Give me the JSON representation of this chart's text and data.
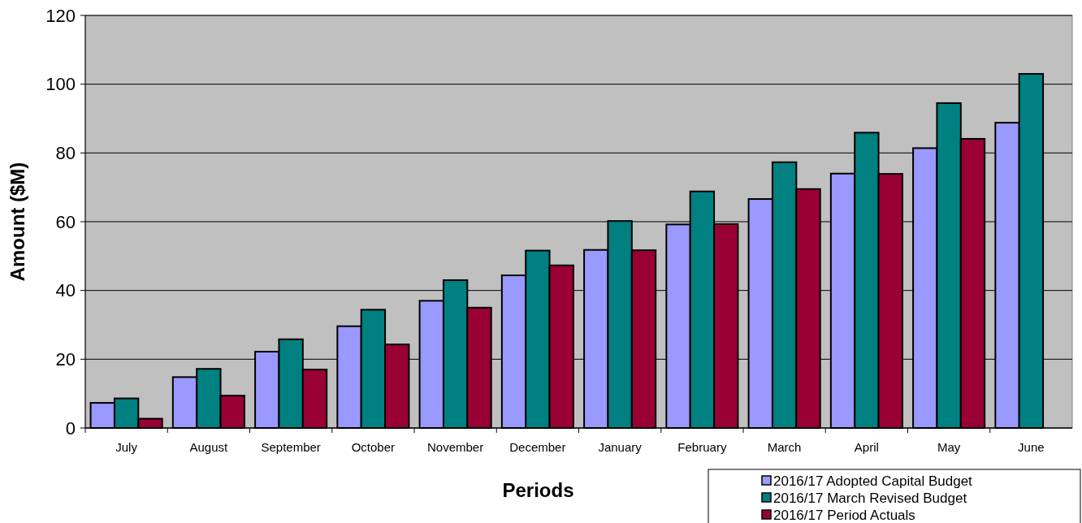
{
  "chart_data": {
    "type": "bar",
    "xlabel": "Periods",
    "ylabel": "Amount ($M)",
    "categories": [
      "July",
      "August",
      "September",
      "October",
      "November",
      "December",
      "January",
      "February",
      "March",
      "April",
      "May",
      "June"
    ],
    "series": [
      {
        "name": "2016/17 Adopted Capital Budget",
        "color": "#9999ff",
        "values": [
          7.3,
          14.8,
          22.2,
          29.6,
          37,
          44.4,
          51.8,
          59.2,
          66.6,
          74,
          81.4,
          88.8
        ]
      },
      {
        "name": "2016/17 March Revised Budget",
        "color": "#008080",
        "values": [
          8.6,
          17.2,
          25.8,
          34.4,
          43,
          51.6,
          60.2,
          68.8,
          77.3,
          85.9,
          94.5,
          103
        ]
      },
      {
        "name": "2016/17 Period Actuals",
        "color": "#990033",
        "values": [
          2.7,
          9.4,
          17,
          24.3,
          35,
          47.3,
          51.7,
          59.3,
          69.5,
          73.9,
          84.1,
          null
        ]
      }
    ],
    "ylim": [
      0,
      120
    ],
    "yticks": [
      0,
      20,
      40,
      60,
      80,
      100,
      120
    ],
    "grid": "y",
    "legend": "bottom right"
  }
}
